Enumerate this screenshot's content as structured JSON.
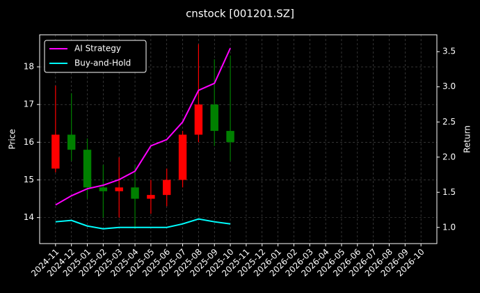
{
  "chart_data": {
    "type": "candlestick",
    "title": "cnstock [001201.SZ]",
    "y_label": "Price",
    "y2_label": "Return",
    "x": [
      "2024-11",
      "2024-12",
      "2025-01",
      "2025-02",
      "2025-03",
      "2025-04",
      "2025-05",
      "2025-06",
      "2025-07",
      "2025-08",
      "2025-09",
      "2025-10"
    ],
    "open": [
      15.3,
      16.2,
      15.8,
      14.8,
      14.7,
      14.8,
      14.5,
      14.6,
      15.0,
      16.2,
      17.0,
      16.3
    ],
    "high": [
      17.5,
      17.3,
      16.1,
      15.4,
      15.6,
      15.4,
      15.0,
      15.3,
      16.3,
      18.6,
      18.2,
      18.3
    ],
    "low": [
      15.2,
      15.5,
      14.5,
      14.0,
      14.0,
      13.7,
      14.1,
      14.3,
      14.8,
      16.0,
      15.9,
      15.5
    ],
    "close": [
      16.2,
      15.8,
      14.8,
      14.7,
      14.8,
      14.5,
      14.6,
      15.0,
      16.2,
      17.0,
      16.3,
      16.0
    ],
    "up_color": "#ff0000",
    "down_color": "#008000",
    "series": [
      {
        "name": "AI Strategy",
        "color": "#ff00ff",
        "axis": "y2",
        "values": [
          1.32,
          1.45,
          1.55,
          1.6,
          1.68,
          1.8,
          2.16,
          2.25,
          2.5,
          2.95,
          3.05,
          3.55
        ]
      },
      {
        "name": "Buy-and-Hold",
        "color": "#00ffff",
        "axis": "y2",
        "values": [
          1.08,
          1.1,
          1.02,
          0.98,
          1.0,
          1.0,
          1.0,
          1.0,
          1.05,
          1.12,
          1.08,
          1.05
        ]
      }
    ],
    "xlim": [
      "2024-10",
      "2026-11"
    ],
    "xticks": [
      "2024-11",
      "2024-12",
      "2025-01",
      "2025-02",
      "2025-03",
      "2025-04",
      "2025-05",
      "2025-06",
      "2025-07",
      "2025-08",
      "2025-09",
      "2025-10",
      "2025-11",
      "2025-12",
      "2026-01",
      "2026-02",
      "2026-03",
      "2026-04",
      "2026-05",
      "2026-06",
      "2026-07",
      "2026-08",
      "2026-09",
      "2026-10"
    ],
    "ylim": [
      13.31,
      18.85
    ],
    "yticks": [
      14,
      15,
      16,
      17,
      18
    ],
    "y2lim": [
      0.77,
      3.74
    ],
    "y2ticks": [
      {
        "value": 1,
        "label": "1.0"
      },
      1.5,
      {
        "value": 2,
        "label": "2.0"
      },
      2.5,
      {
        "value": 3,
        "label": "3.0"
      },
      3.5
    ],
    "grid": true,
    "legend": "upper left"
  }
}
